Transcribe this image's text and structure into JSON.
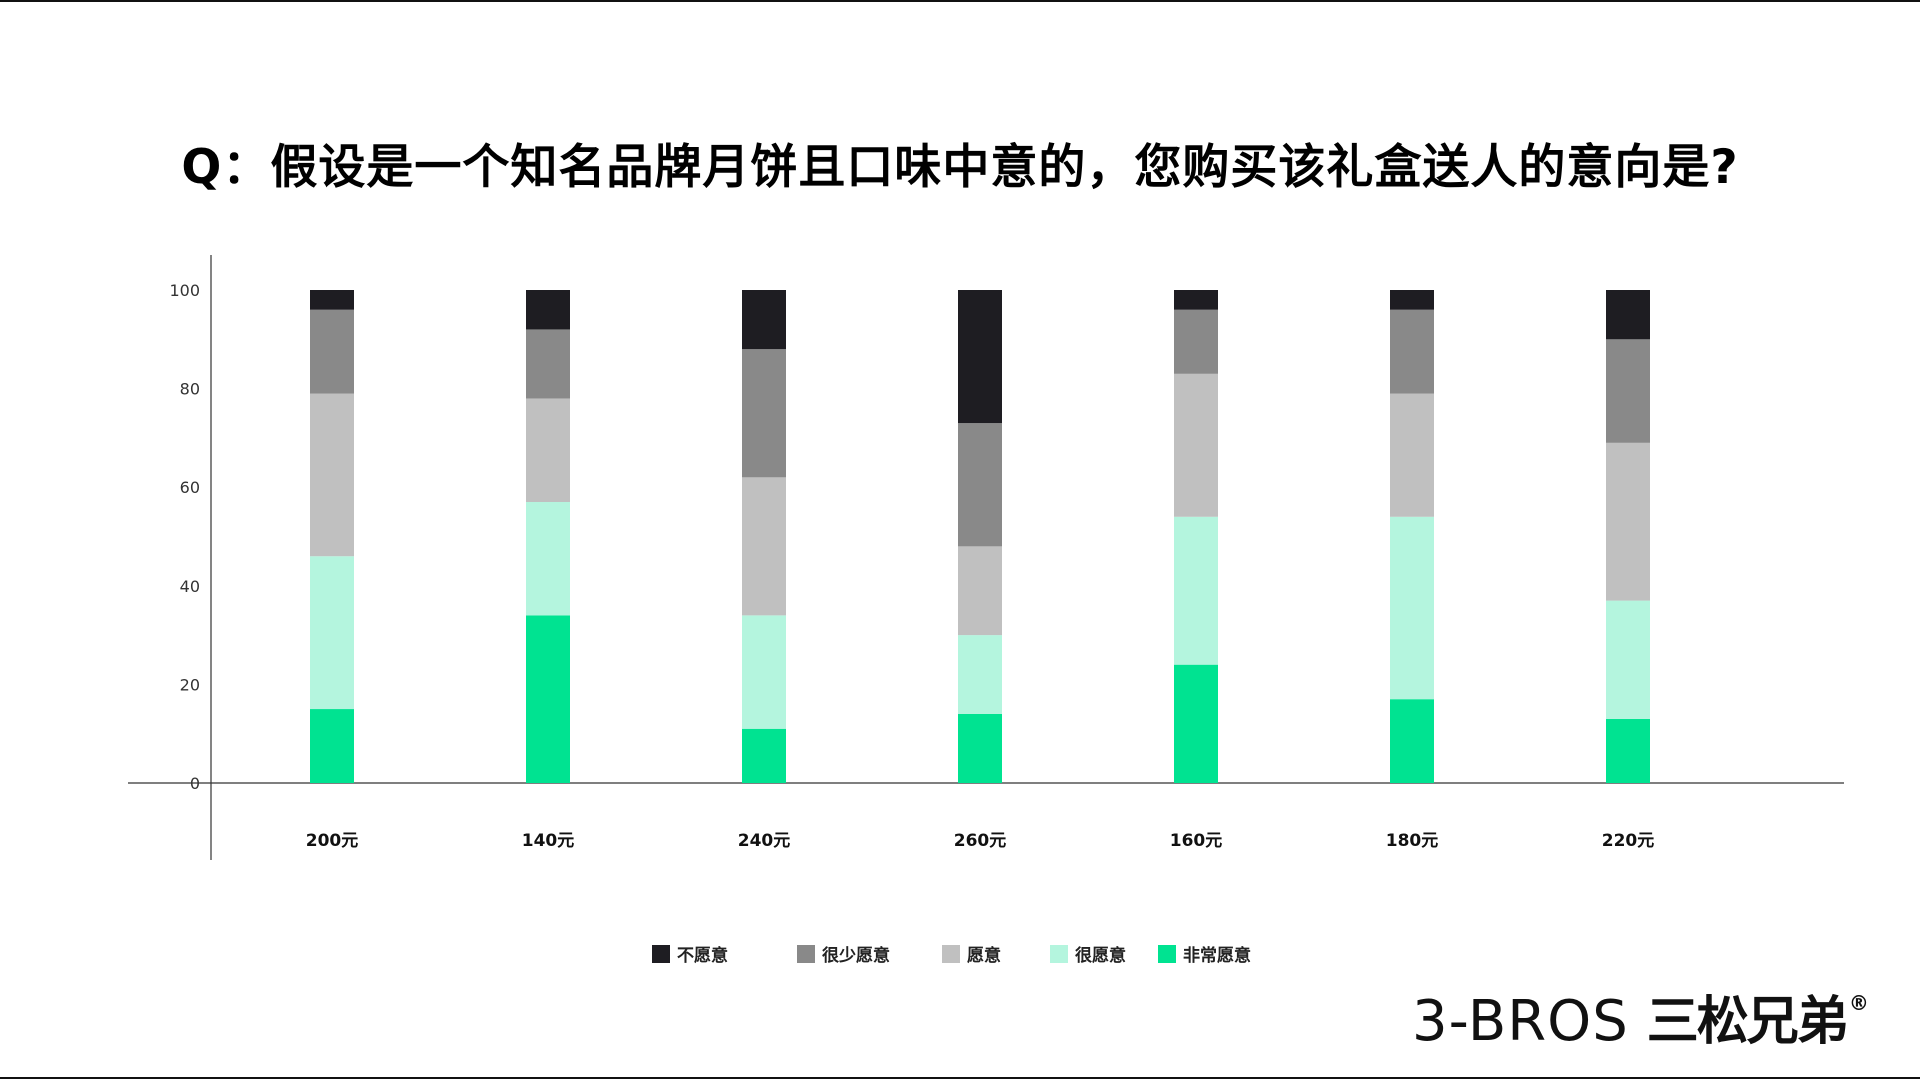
{
  "title": "Q：假设是一个知名品牌月饼且口味中意的，您购买该礼盒送人的意向是?",
  "brand": {
    "en": "3-BROS",
    "cn": "三松兄弟",
    "reg": "®"
  },
  "colors": {
    "不愿意": "#1e1d22",
    "很少愿意": "#898989",
    "愿意": "#c0c0c0",
    "很愿意": "#b4f5de",
    "非常愿意": "#00e391"
  },
  "legend": [
    "不愿意",
    "很少愿意",
    "愿意",
    "很愿意",
    "非常愿意"
  ],
  "chart_data": {
    "type": "bar",
    "stacked": true,
    "categories": [
      "200元",
      "140元",
      "240元",
      "260元",
      "160元",
      "180元",
      "220元"
    ],
    "ylim": [
      0,
      100
    ],
    "yticks": [
      0,
      20,
      40,
      60,
      80,
      100
    ],
    "series": [
      {
        "name": "非常愿意",
        "values": [
          15,
          34,
          11,
          14,
          24,
          17,
          13
        ]
      },
      {
        "name": "很愿意",
        "values": [
          31,
          23,
          23,
          16,
          30,
          37,
          24
        ]
      },
      {
        "name": "愿意",
        "values": [
          33,
          21,
          28,
          18,
          29,
          25,
          32
        ]
      },
      {
        "name": "很少愿意",
        "values": [
          17,
          14,
          26,
          25,
          13,
          17,
          21
        ]
      },
      {
        "name": "不愿意",
        "values": [
          4,
          8,
          12,
          27,
          4,
          4,
          10
        ]
      }
    ]
  }
}
